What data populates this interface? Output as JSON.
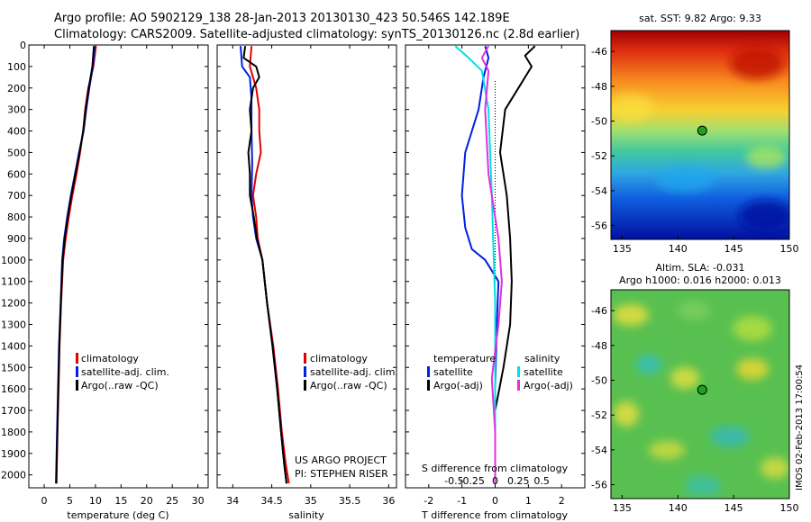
{
  "header": {
    "title_line1": "Argo profile: AO 5902129_138 28-Jan-2013 20130130_423 50.546S 142.189E",
    "title_line2": "Climatology: CARS2009. Satellite-adjusted climatology: synTS_20130126.nc (2.8d earlier)"
  },
  "colors": {
    "climatology": "#e00000",
    "satellite": "#0020e0",
    "argo": "#000000",
    "satellite_salinity": "#00e0e8",
    "argo_salinity_adj": "#e030e0"
  },
  "stamp": "IMOS 02-Feb-2013 17:00:54",
  "chart_data": [
    {
      "type": "line",
      "panel": "temperature",
      "xlabel": "temperature (deg C)",
      "ylabel": "",
      "xlim": [
        -3,
        32
      ],
      "ylim": [
        2060,
        0
      ],
      "x_ticks": [
        0,
        5,
        10,
        15,
        20,
        25,
        30
      ],
      "y_ticks": [
        0,
        100,
        200,
        300,
        400,
        500,
        600,
        700,
        800,
        900,
        1000,
        1100,
        1200,
        1300,
        1400,
        1500,
        1600,
        1700,
        1800,
        1900,
        2000
      ],
      "legend": [
        "climatology",
        "satellite-adj. clim.",
        "Argo(..raw -QC)"
      ],
      "series": [
        {
          "name": "climatology",
          "color_key": "climatology",
          "points": [
            [
              10.1,
              5
            ],
            [
              9.6,
              100
            ],
            [
              8.6,
              200
            ],
            [
              8.0,
              300
            ],
            [
              7.6,
              400
            ],
            [
              7.0,
              500
            ],
            [
              6.3,
              600
            ],
            [
              5.5,
              700
            ],
            [
              4.8,
              800
            ],
            [
              4.2,
              900
            ],
            [
              3.7,
              1000
            ],
            [
              3.3,
              1200
            ],
            [
              3.0,
              1400
            ],
            [
              2.8,
              1600
            ],
            [
              2.6,
              1800
            ],
            [
              2.4,
              2040
            ]
          ]
        },
        {
          "name": "satellite-adj. clim.",
          "color_key": "satellite",
          "points": [
            [
              9.9,
              5
            ],
            [
              9.5,
              100
            ],
            [
              8.8,
              200
            ],
            [
              8.2,
              300
            ],
            [
              7.7,
              400
            ],
            [
              6.8,
              500
            ],
            [
              6.0,
              600
            ],
            [
              5.2,
              700
            ],
            [
              4.5,
              800
            ],
            [
              3.9,
              900
            ],
            [
              3.5,
              1000
            ],
            [
              3.2,
              1200
            ],
            [
              2.9,
              1400
            ],
            [
              2.7,
              1600
            ],
            [
              2.5,
              1800
            ],
            [
              2.3,
              2040
            ]
          ]
        },
        {
          "name": "Argo(..raw -QC)",
          "color_key": "argo",
          "points": [
            [
              9.7,
              5
            ],
            [
              9.4,
              100
            ],
            [
              8.7,
              200
            ],
            [
              8.1,
              300
            ],
            [
              7.6,
              400
            ],
            [
              6.9,
              500
            ],
            [
              6.1,
              600
            ],
            [
              5.3,
              700
            ],
            [
              4.6,
              800
            ],
            [
              4.0,
              900
            ],
            [
              3.6,
              1000
            ],
            [
              3.25,
              1200
            ],
            [
              2.95,
              1400
            ],
            [
              2.75,
              1600
            ],
            [
              2.55,
              1800
            ],
            [
              2.35,
              2040
            ]
          ]
        }
      ]
    },
    {
      "type": "line",
      "panel": "salinity",
      "xlabel": "salinity",
      "ylabel": "",
      "xlim": [
        33.8,
        36.1
      ],
      "ylim": [
        2060,
        0
      ],
      "x_ticks": [
        34,
        34.5,
        35,
        35.5,
        36
      ],
      "legend": [
        "climatology",
        "satellite-adj. clim.",
        "Argo(..raw -QC)"
      ],
      "annotations": [
        "US ARGO PROJECT",
        "PI: STEPHEN RISER"
      ],
      "series": [
        {
          "name": "climatology",
          "color_key": "climatology",
          "points": [
            [
              34.24,
              5
            ],
            [
              34.22,
              100
            ],
            [
              34.3,
              200
            ],
            [
              34.34,
              300
            ],
            [
              34.34,
              400
            ],
            [
              34.36,
              500
            ],
            [
              34.3,
              600
            ],
            [
              34.26,
              700
            ],
            [
              34.3,
              800
            ],
            [
              34.32,
              900
            ],
            [
              34.38,
              1000
            ],
            [
              34.44,
              1200
            ],
            [
              34.52,
              1400
            ],
            [
              34.58,
              1600
            ],
            [
              34.63,
              1800
            ],
            [
              34.68,
              1950
            ],
            [
              34.72,
              2040
            ]
          ]
        },
        {
          "name": "satellite-adj. clim.",
          "color_key": "satellite",
          "points": [
            [
              34.1,
              5
            ],
            [
              34.12,
              100
            ],
            [
              34.22,
              150
            ],
            [
              34.24,
              250
            ],
            [
              34.24,
              400
            ],
            [
              34.25,
              550
            ],
            [
              34.24,
              700
            ],
            [
              34.26,
              800
            ],
            [
              34.3,
              900
            ],
            [
              34.38,
              1000
            ],
            [
              34.44,
              1200
            ],
            [
              34.51,
              1400
            ],
            [
              34.57,
              1600
            ],
            [
              34.62,
              1800
            ],
            [
              34.66,
              1950
            ],
            [
              34.69,
              2040
            ]
          ]
        },
        {
          "name": "Argo(..raw -QC)",
          "color_key": "argo",
          "points": [
            [
              34.16,
              5
            ],
            [
              34.14,
              60
            ],
            [
              34.3,
              100
            ],
            [
              34.34,
              150
            ],
            [
              34.26,
              200
            ],
            [
              34.22,
              300
            ],
            [
              34.24,
              400
            ],
            [
              34.2,
              500
            ],
            [
              34.22,
              600
            ],
            [
              34.22,
              700
            ],
            [
              34.27,
              800
            ],
            [
              34.31,
              900
            ],
            [
              34.38,
              1000
            ],
            [
              34.44,
              1200
            ],
            [
              34.51,
              1400
            ],
            [
              34.57,
              1600
            ],
            [
              34.62,
              1800
            ],
            [
              34.66,
              1950
            ],
            [
              34.69,
              2040
            ]
          ]
        }
      ]
    },
    {
      "type": "line",
      "panel": "difference",
      "xlabel": "T difference from climatology",
      "xlabel_top": "S difference from climatology",
      "ylabel": "",
      "xlim": [
        -2.7,
        2.7
      ],
      "ylim": [
        2060,
        0
      ],
      "x_ticks": [
        -2,
        -1,
        0,
        1,
        2
      ],
      "x_ticks_s": [
        "-0.5",
        "-0.25",
        "0",
        "0.25",
        "0.5"
      ],
      "legend_groups": [
        {
          "heading": "temperature",
          "items": [
            "satellite",
            "Argo(-adj)"
          ]
        },
        {
          "heading": "salinity",
          "items": [
            "satellite",
            "Argo(-adj)"
          ]
        }
      ],
      "series": [
        {
          "name": "temperature satellite",
          "color_key": "satellite",
          "points": [
            [
              -0.3,
              5
            ],
            [
              -0.2,
              60
            ],
            [
              -0.35,
              150
            ],
            [
              -0.5,
              300
            ],
            [
              -0.9,
              500
            ],
            [
              -1.0,
              700
            ],
            [
              -0.9,
              850
            ],
            [
              -0.7,
              950
            ],
            [
              -0.3,
              1000
            ],
            [
              0.1,
              1100
            ],
            [
              0.05,
              1300
            ],
            [
              0.0,
              1600
            ],
            [
              0.0,
              2040
            ]
          ]
        },
        {
          "name": "temperature Argo(-adj)",
          "color_key": "argo",
          "points": [
            [
              1.2,
              5
            ],
            [
              0.9,
              50
            ],
            [
              1.1,
              100
            ],
            [
              0.7,
              200
            ],
            [
              0.3,
              300
            ],
            [
              0.15,
              500
            ],
            [
              0.35,
              700
            ],
            [
              0.45,
              900
            ],
            [
              0.5,
              1100
            ],
            [
              0.45,
              1300
            ],
            [
              0.25,
              1500
            ],
            [
              0.0,
              1700
            ],
            [
              0.0,
              2040
            ]
          ]
        },
        {
          "name": "salinity satellite",
          "color_key": "satellite_salinity",
          "points": [
            [
              -1.2,
              5
            ],
            [
              -0.8,
              60
            ],
            [
              -0.4,
              120
            ],
            [
              -0.2,
              300
            ],
            [
              -0.1,
              700
            ],
            [
              0.0,
              1200
            ],
            [
              0.0,
              1600
            ],
            [
              0.0,
              2040
            ]
          ]
        },
        {
          "name": "salinity Argo(-adj)",
          "color_key": "argo_salinity_adj",
          "points": [
            [
              -0.2,
              5
            ],
            [
              -0.4,
              60
            ],
            [
              -0.2,
              120
            ],
            [
              -0.3,
              300
            ],
            [
              -0.2,
              600
            ],
            [
              0.1,
              900
            ],
            [
              0.2,
              1100
            ],
            [
              0.1,
              1300
            ],
            [
              -0.1,
              1550
            ],
            [
              0.0,
              1800
            ],
            [
              0.0,
              2040
            ]
          ]
        }
      ]
    },
    {
      "type": "heatmap",
      "panel": "sst_map",
      "title": "sat. SST: 9.82  Argo: 9.33",
      "xlim": [
        134,
        150
      ],
      "ylim": [
        -56.8,
        -44.8
      ],
      "x_ticks": [
        135,
        140,
        145,
        150
      ],
      "y_ticks": [
        -46,
        -48,
        -50,
        -52,
        -54,
        -56
      ],
      "marker": [
        142.189,
        -50.546
      ]
    },
    {
      "type": "heatmap",
      "panel": "sla_map",
      "title": "Altim. SLA: -0.031",
      "subtitle": "Argo h1000: 0.016  h2000: 0.013",
      "xlim": [
        134,
        150
      ],
      "ylim": [
        -56.8,
        -44.8
      ],
      "x_ticks": [
        135,
        140,
        145,
        150
      ],
      "y_ticks": [
        -46,
        -48,
        -50,
        -52,
        -54,
        -56
      ],
      "marker": [
        142.189,
        -50.546
      ]
    }
  ]
}
